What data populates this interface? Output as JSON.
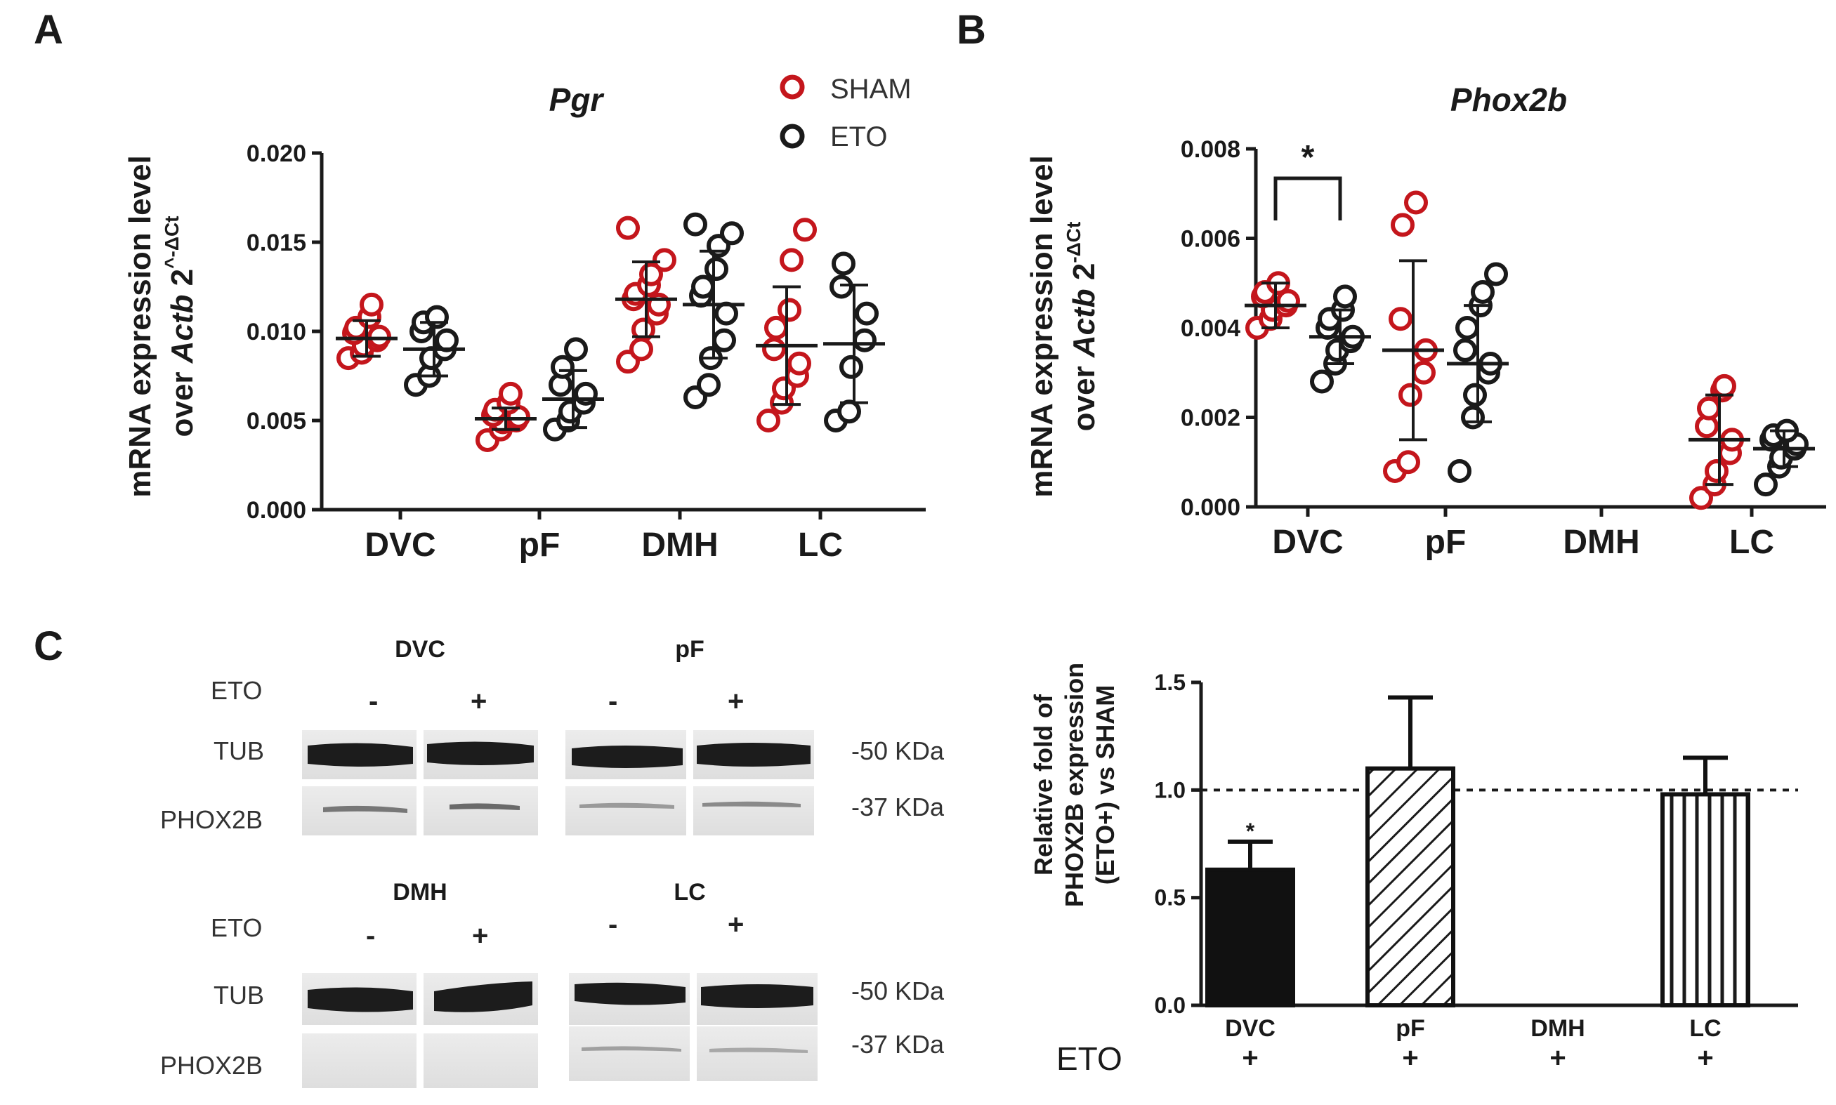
{
  "colors": {
    "sham": "#c4161c",
    "eto": "#1a1a1a"
  },
  "panels": {
    "a": "A",
    "b": "B",
    "c": "C"
  },
  "legend": {
    "sham": "SHAM",
    "eto": "ETO"
  },
  "ylabel": {
    "line1": "mRNA expression level",
    "over": "over ",
    "gene": "Actb",
    "base": " 2",
    "supA": "^-ΔCt",
    "supB": "-ΔCt"
  },
  "blots": {
    "eto_label": "ETO",
    "minus": "-",
    "plus": "+",
    "tub": "TUB",
    "phox": "PHOX2B",
    "kda50": "-50 KDa",
    "kda37": "-37 KDa",
    "regions": [
      "DVC",
      "pF",
      "DMH",
      "LC"
    ]
  },
  "chart_data": [
    {
      "panel": "A",
      "type": "scatter",
      "title": "Pgr",
      "categories": [
        "DVC",
        "pF",
        "DMH",
        "LC"
      ],
      "ylim": [
        0,
        0.02
      ],
      "yticks": [
        "0.000",
        "0.005",
        "0.010",
        "0.015",
        "0.020"
      ],
      "ylabel": "mRNA expression level over Actb 2^-ΔCt",
      "series": [
        {
          "name": "SHAM",
          "points": [
            [
              0.0085,
              0.0088,
              0.0092,
              0.0095,
              0.0097,
              0.0099,
              0.0102,
              0.0108,
              0.0115
            ],
            [
              0.0039,
              0.0045,
              0.0049,
              0.005,
              0.0052,
              0.0053,
              0.0056,
              0.006,
              0.0065
            ],
            [
              0.0083,
              0.009,
              0.0101,
              0.011,
              0.0115,
              0.0118,
              0.0121,
              0.0126,
              0.0132,
              0.014,
              0.0158
            ],
            [
              0.005,
              0.006,
              0.0068,
              0.0075,
              0.0082,
              0.009,
              0.0102,
              0.0112,
              0.014,
              0.0157
            ]
          ],
          "mean": [
            0.0096,
            0.0051,
            0.0118,
            0.0092
          ],
          "sd": [
            0.001,
            0.0006,
            0.0021,
            0.0033
          ]
        },
        {
          "name": "ETO",
          "points": [
            [
              0.007,
              0.0075,
              0.0085,
              0.009,
              0.0095,
              0.01,
              0.0105,
              0.0108
            ],
            [
              0.0045,
              0.005,
              0.0055,
              0.006,
              0.0065,
              0.007,
              0.008,
              0.009
            ],
            [
              0.0063,
              0.007,
              0.0085,
              0.0095,
              0.011,
              0.012,
              0.0125,
              0.0135,
              0.0148,
              0.0155,
              0.016
            ],
            [
              0.005,
              0.0055,
              0.008,
              0.0095,
              0.011,
              0.0125,
              0.0138
            ]
          ],
          "mean": [
            0.009,
            0.0062,
            0.0115,
            0.0093
          ],
          "sd": [
            0.0015,
            0.0016,
            0.003,
            0.0033
          ]
        }
      ]
    },
    {
      "panel": "B",
      "type": "scatter",
      "title": "Phox2b",
      "categories": [
        "DVC",
        "pF",
        "DMH",
        "LC"
      ],
      "ylim": [
        0,
        0.008
      ],
      "yticks": [
        "0.000",
        "0.002",
        "0.004",
        "0.006",
        "0.008"
      ],
      "ylabel": "mRNA expression level over Actb 2-ΔCt",
      "significance": {
        "between": [
          "DVC SHAM",
          "DVC ETO"
        ],
        "label": "*"
      },
      "series": [
        {
          "name": "SHAM",
          "points": [
            [
              0.004,
              0.0042,
              0.0044,
              0.0045,
              0.0046,
              0.0047,
              0.0048,
              0.005
            ],
            [
              0.0008,
              0.001,
              0.0025,
              0.003,
              0.0035,
              0.0042,
              0.0063,
              0.0068
            ],
            [],
            [
              0.0002,
              0.0005,
              0.0008,
              0.0012,
              0.0015,
              0.0018,
              0.0022,
              0.0026,
              0.0027
            ]
          ],
          "mean": [
            0.0045,
            0.0035,
            null,
            0.0015
          ],
          "sd": [
            0.0005,
            0.002,
            null,
            0.001
          ]
        },
        {
          "name": "ETO",
          "points": [
            [
              0.0028,
              0.0032,
              0.0035,
              0.0037,
              0.0038,
              0.004,
              0.0042,
              0.0044,
              0.0047
            ],
            [
              0.0008,
              0.002,
              0.0025,
              0.003,
              0.0032,
              0.0035,
              0.004,
              0.0045,
              0.0048,
              0.0052
            ],
            [],
            [
              0.0005,
              0.0009,
              0.0011,
              0.0013,
              0.0014,
              0.0015,
              0.0016,
              0.0017
            ]
          ],
          "mean": [
            0.0038,
            0.0032,
            null,
            0.0013
          ],
          "sd": [
            0.0006,
            0.0013,
            null,
            0.0004
          ]
        }
      ]
    },
    {
      "panel": "C",
      "type": "bar",
      "categories": [
        "DVC",
        "pF",
        "DMH",
        "LC"
      ],
      "values": [
        0.63,
        1.1,
        null,
        0.98
      ],
      "errors": [
        0.13,
        0.33,
        null,
        0.17
      ],
      "patterns": [
        "solid",
        "diagonal",
        "none",
        "vertical"
      ],
      "significance": [
        "*",
        "",
        "",
        ""
      ],
      "reference_line": 1.0,
      "ylim": [
        0,
        1.5
      ],
      "yticks": [
        "0.0",
        "0.5",
        "1.0",
        "1.5"
      ],
      "ylabel_lines": [
        "Relative fold of",
        "PHOX2B expression",
        "(ETO+) vs SHAM"
      ],
      "xlabel_row": {
        "label": "ETO",
        "signs": [
          "+",
          "+",
          "+",
          "+"
        ]
      }
    }
  ]
}
